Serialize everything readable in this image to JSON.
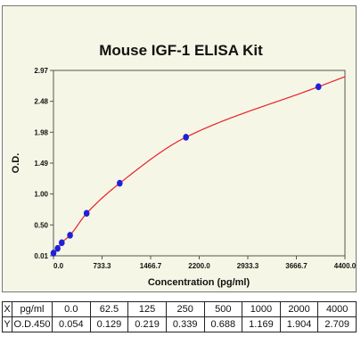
{
  "chart_data": {
    "type": "scatter",
    "title": "Mouse IGF-1 ELISA Kit",
    "xlabel": "Concentration (pg/ml)",
    "ylabel": "O.D.",
    "x_ticks": [
      "0.0",
      "733.3",
      "1466.7",
      "2200.0",
      "2933.3",
      "3666.7",
      "4400.0"
    ],
    "y_ticks": [
      "0.01",
      "0.50",
      "1.00",
      "1.49",
      "1.98",
      "2.48",
      "2.97"
    ],
    "xlim": [
      0,
      4400
    ],
    "ylim": [
      0.01,
      2.97
    ],
    "grid": false,
    "legend": "none",
    "series": [
      {
        "x": [
          0,
          62.5,
          125,
          250,
          500,
          1000,
          2000,
          4000
        ],
        "y": [
          0.054,
          0.129,
          0.219,
          0.339,
          0.688,
          1.169,
          1.904,
          2.709
        ]
      }
    ],
    "fit_curve_color": "#e8202a",
    "point_color": "#2020d8"
  },
  "table": {
    "rows": [
      {
        "key": "X",
        "unit": "pg/ml",
        "values": [
          "0.0",
          "62.5",
          "125",
          "250",
          "500",
          "1000",
          "2000",
          "4000"
        ]
      },
      {
        "key": "Y",
        "unit": "O.D.450",
        "values": [
          "0.054",
          "0.129",
          "0.219",
          "0.339",
          "0.688",
          "1.169",
          "1.904",
          "2.709"
        ]
      }
    ]
  }
}
